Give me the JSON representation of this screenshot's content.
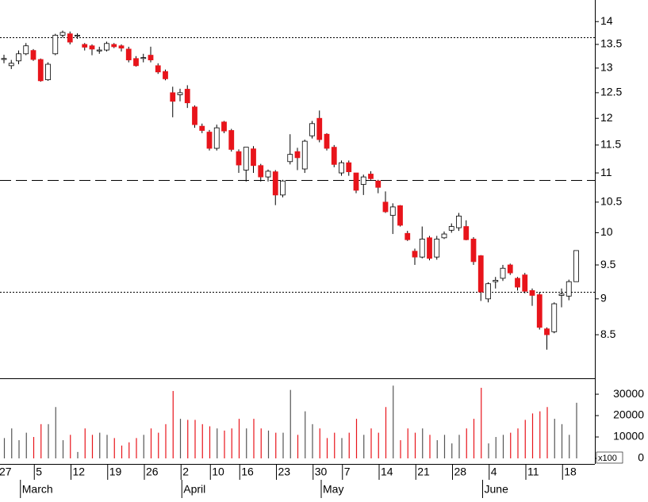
{
  "chart_data": [
    {
      "type": "candlestick",
      "categories": [
        "27",
        null,
        null,
        null,
        null,
        "5",
        null,
        null,
        null,
        null,
        "12",
        null,
        null,
        null,
        null,
        "19",
        null,
        null,
        null,
        null,
        "26",
        null,
        null,
        null,
        null,
        "2",
        null,
        null,
        null,
        "10",
        null,
        null,
        null,
        "16",
        null,
        null,
        null,
        null,
        "23",
        null,
        null,
        null,
        null,
        "30",
        null,
        null,
        null,
        "7",
        null,
        null,
        null,
        null,
        "14",
        null,
        null,
        null,
        null,
        "21",
        null,
        null,
        null,
        null,
        "28",
        null,
        null,
        null,
        null,
        "4",
        null,
        null,
        null,
        null,
        "11",
        null,
        null,
        null,
        null,
        "18",
        null
      ],
      "months": [
        {
          "label": "March",
          "index": 3
        },
        {
          "label": "April",
          "index": 25
        },
        {
          "label": "May",
          "index": 44
        },
        {
          "label": "June",
          "index": 66
        }
      ],
      "open": [
        13.18,
        13.05,
        13.15,
        13.3,
        13.37,
        13.18,
        12.76,
        13.3,
        13.7,
        13.73,
        13.68,
        13.5,
        13.47,
        13.36,
        13.38,
        13.5,
        13.47,
        13.4,
        13.2,
        13.2,
        13.27,
        13.05,
        12.93,
        12.5,
        12.46,
        12.57,
        12.22,
        11.85,
        11.74,
        11.44,
        11.93,
        11.77,
        11.38,
        11.05,
        11.43,
        11.13,
        10.93,
        11.02,
        10.62,
        11.2,
        11.38,
        11.07,
        11.67,
        12.0,
        11.7,
        11.46,
        11.0,
        11.18,
        11.0,
        10.8,
        10.98,
        10.86,
        10.5,
        10.28,
        10.44,
        9.99,
        9.71,
        9.62,
        9.92,
        9.62,
        9.92,
        10.04,
        10.08,
        10.1,
        9.9,
        9.64,
        9.0,
        9.25,
        9.3,
        9.5,
        9.3,
        9.35,
        9.12,
        9.06,
        8.58,
        8.54,
        9.05,
        9.04,
        9.25
      ],
      "high": [
        13.28,
        13.17,
        13.37,
        13.53,
        13.4,
        13.2,
        13.12,
        13.73,
        13.8,
        13.78,
        13.74,
        13.53,
        13.5,
        13.45,
        13.56,
        13.53,
        13.5,
        13.45,
        13.25,
        13.3,
        13.45,
        13.1,
        12.97,
        12.62,
        12.58,
        12.65,
        12.25,
        11.9,
        11.78,
        11.88,
        11.95,
        11.8,
        11.42,
        11.46,
        11.48,
        11.16,
        11.06,
        11.05,
        10.88,
        11.7,
        11.45,
        11.6,
        11.95,
        12.15,
        11.72,
        11.5,
        11.22,
        11.22,
        11.0,
        10.97,
        11.03,
        10.88,
        10.68,
        10.48,
        10.45,
        10.03,
        9.75,
        10.1,
        9.95,
        9.95,
        10.02,
        10.15,
        10.32,
        10.2,
        9.93,
        9.65,
        9.24,
        9.32,
        9.5,
        9.52,
        9.32,
        9.38,
        9.15,
        9.1,
        8.6,
        8.95,
        9.15,
        9.28,
        9.72
      ],
      "low": [
        13.1,
        12.98,
        13.08,
        13.27,
        13.15,
        12.72,
        12.74,
        13.27,
        13.65,
        13.5,
        13.62,
        13.37,
        13.27,
        13.3,
        13.35,
        13.42,
        13.35,
        13.12,
        13.03,
        13.12,
        13.12,
        12.88,
        12.75,
        12.02,
        12.33,
        12.2,
        11.82,
        11.72,
        11.4,
        11.4,
        11.72,
        11.38,
        11.0,
        10.85,
        11.0,
        10.85,
        10.85,
        10.45,
        10.58,
        11.15,
        11.05,
        11.0,
        11.62,
        11.55,
        11.4,
        11.1,
        10.95,
        10.95,
        10.65,
        10.62,
        10.88,
        10.65,
        10.32,
        9.98,
        10.1,
        9.87,
        9.5,
        9.6,
        9.57,
        9.58,
        9.9,
        10.0,
        10.03,
        9.88,
        9.5,
        8.97,
        8.95,
        9.15,
        9.26,
        9.35,
        9.12,
        9.08,
        8.9,
        8.57,
        8.3,
        8.52,
        8.88,
        8.98,
        9.25
      ],
      "close": [
        13.2,
        13.1,
        13.3,
        13.47,
        13.18,
        12.74,
        13.08,
        13.7,
        13.76,
        13.55,
        13.7,
        13.44,
        13.4,
        13.38,
        13.52,
        13.45,
        13.42,
        13.17,
        13.05,
        13.22,
        13.17,
        12.92,
        12.78,
        12.33,
        12.5,
        12.3,
        11.88,
        11.77,
        11.44,
        11.82,
        11.76,
        11.42,
        11.14,
        11.46,
        11.13,
        10.93,
        11.03,
        10.62,
        10.86,
        11.33,
        11.27,
        11.57,
        11.9,
        11.6,
        11.44,
        11.15,
        11.18,
        11.02,
        10.7,
        10.93,
        10.9,
        10.75,
        10.34,
        10.42,
        10.12,
        9.89,
        9.62,
        9.9,
        9.6,
        9.9,
        9.98,
        10.1,
        10.27,
        9.89,
        9.55,
        9.1,
        9.22,
        9.27,
        9.45,
        9.38,
        9.17,
        9.11,
        9.05,
        8.6,
        8.5,
        8.93,
        9.07,
        9.25,
        9.72
      ],
      "up_color": "#ffffff",
      "down_color": "#e8141b",
      "log_scale": true,
      "ylim": [
        7.93,
        14.49
      ],
      "yticks": [
        8.5,
        9.0,
        9.5,
        10.0,
        10.5,
        11.0,
        11.5,
        12.0,
        12.5,
        13.0,
        13.5,
        14.0
      ],
      "hlines": [
        {
          "value": 13.65,
          "style": "dotted"
        },
        {
          "value": 10.87,
          "style": "dashed"
        },
        {
          "value": 9.1,
          "style": "dotted"
        }
      ]
    },
    {
      "type": "bar",
      "values": [
        9500,
        14000,
        8500,
        12000,
        10000,
        16000,
        16000,
        24000,
        8500,
        11000,
        3000,
        14000,
        11000,
        12000,
        11000,
        9500,
        6000,
        7500,
        9500,
        11000,
        14000,
        12000,
        16000,
        31500,
        18500,
        18000,
        18000,
        16000,
        15000,
        14000,
        13000,
        14000,
        18500,
        14000,
        18500,
        14000,
        13000,
        12000,
        12000,
        32000,
        11000,
        22000,
        16000,
        14000,
        9500,
        12000,
        9500,
        12000,
        18500,
        11000,
        14000,
        12000,
        24000,
        34000,
        8500,
        14000,
        12000,
        14000,
        11000,
        8500,
        11000,
        7000,
        11000,
        14000,
        18500,
        33000,
        7000,
        10000,
        11000,
        12000,
        14000,
        18000,
        21000,
        22000,
        24000,
        18500,
        16000,
        11000,
        26000
      ],
      "up_color": "#555555",
      "down_color": "#e8141b",
      "ylim": [
        -2600,
        36700
      ],
      "yticks": [
        0,
        10000,
        20000,
        30000
      ],
      "unit_label": "x100"
    }
  ]
}
